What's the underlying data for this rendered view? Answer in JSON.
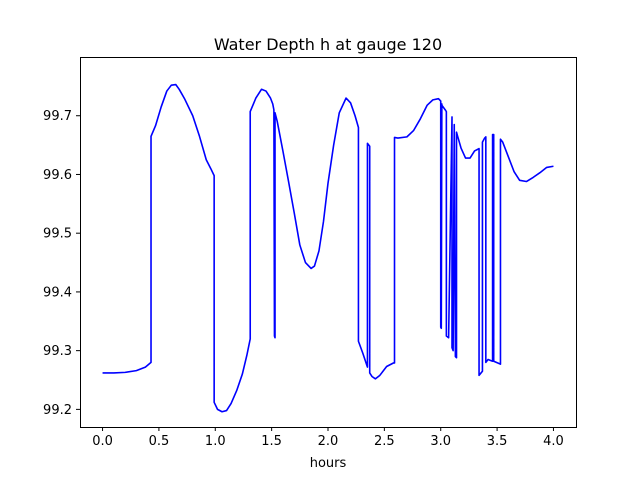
{
  "chart_data": {
    "type": "line",
    "title": "Water Depth h at gauge 120",
    "xlabel": "hours",
    "ylabel": "",
    "xlim": [
      -0.2,
      4.2
    ],
    "ylim": [
      99.17,
      99.8
    ],
    "xticks": [
      0.0,
      0.5,
      1.0,
      1.5,
      2.0,
      2.5,
      3.0,
      3.5,
      4.0
    ],
    "xtick_labels": [
      "0.0",
      "0.5",
      "1.0",
      "1.5",
      "2.0",
      "2.5",
      "3.0",
      "3.5",
      "4.0"
    ],
    "yticks": [
      99.2,
      99.3,
      99.4,
      99.5,
      99.6,
      99.7
    ],
    "ytick_labels": [
      "99.2",
      "99.3",
      "99.4",
      "99.5",
      "99.6",
      "99.7"
    ],
    "grid": false,
    "legend": "none",
    "series": [
      {
        "color": "#0000ff",
        "x": [
          0.0,
          0.1,
          0.2,
          0.3,
          0.38,
          0.43,
          0.43,
          0.47,
          0.52,
          0.57,
          0.61,
          0.65,
          0.68,
          0.73,
          0.8,
          0.86,
          0.92,
          0.96,
          0.99,
          0.99,
          1.02,
          1.06,
          1.1,
          1.14,
          1.19,
          1.24,
          1.28,
          1.31,
          1.31,
          1.36,
          1.41,
          1.45,
          1.49,
          1.51,
          1.52,
          1.525,
          1.53,
          1.53,
          1.55,
          1.6,
          1.65,
          1.7,
          1.75,
          1.8,
          1.85,
          1.88,
          1.92,
          1.96,
          2.0,
          2.05,
          2.1,
          2.16,
          2.2,
          2.24,
          2.27,
          2.27,
          2.31,
          2.35,
          2.35,
          2.37,
          2.37,
          2.39,
          2.42,
          2.46,
          2.52,
          2.58,
          2.59,
          2.59,
          2.62,
          2.7,
          2.76,
          2.82,
          2.88,
          2.93,
          2.98,
          3.0,
          3.0,
          3.005,
          3.01,
          3.01,
          3.04,
          3.05,
          3.05,
          3.07,
          3.1,
          3.1,
          3.11,
          3.12,
          3.12,
          3.13,
          3.14,
          3.14,
          3.15,
          3.18,
          3.22,
          3.26,
          3.3,
          3.34,
          3.34,
          3.37,
          3.37,
          3.39,
          3.4,
          3.4,
          3.42,
          3.46,
          3.46,
          3.47,
          3.47,
          3.53,
          3.53,
          3.55,
          3.6,
          3.65,
          3.7,
          3.76,
          3.82,
          3.88,
          3.94,
          4.0
        ],
        "y": [
          99.262,
          99.262,
          99.263,
          99.266,
          99.272,
          99.28,
          99.665,
          99.683,
          99.715,
          99.742,
          99.752,
          99.753,
          99.745,
          99.728,
          99.7,
          99.665,
          99.625,
          99.61,
          99.598,
          99.212,
          99.2,
          99.196,
          99.198,
          99.21,
          99.232,
          99.26,
          99.292,
          99.32,
          99.707,
          99.73,
          99.745,
          99.742,
          99.73,
          99.72,
          99.71,
          99.325,
          99.322,
          99.705,
          99.69,
          99.64,
          99.588,
          99.535,
          99.48,
          99.45,
          99.44,
          99.444,
          99.47,
          99.52,
          99.585,
          99.65,
          99.705,
          99.73,
          99.722,
          99.7,
          99.68,
          99.316,
          99.295,
          99.272,
          99.653,
          99.648,
          99.262,
          99.256,
          99.252,
          99.258,
          99.273,
          99.279,
          99.279,
          99.663,
          99.662,
          99.664,
          99.675,
          99.695,
          99.718,
          99.727,
          99.729,
          99.725,
          99.34,
          99.338,
          99.72,
          99.718,
          99.71,
          99.707,
          99.325,
          99.322,
          99.698,
          99.305,
          99.3,
          99.685,
          99.685,
          99.29,
          99.288,
          99.672,
          99.665,
          99.645,
          99.628,
          99.628,
          99.64,
          99.644,
          99.258,
          99.265,
          99.655,
          99.662,
          99.664,
          99.28,
          99.285,
          99.282,
          99.668,
          99.668,
          99.282,
          99.277,
          99.66,
          99.655,
          99.63,
          99.605,
          99.59,
          99.588,
          99.595,
          99.603,
          99.612,
          99.614
        ]
      }
    ]
  }
}
